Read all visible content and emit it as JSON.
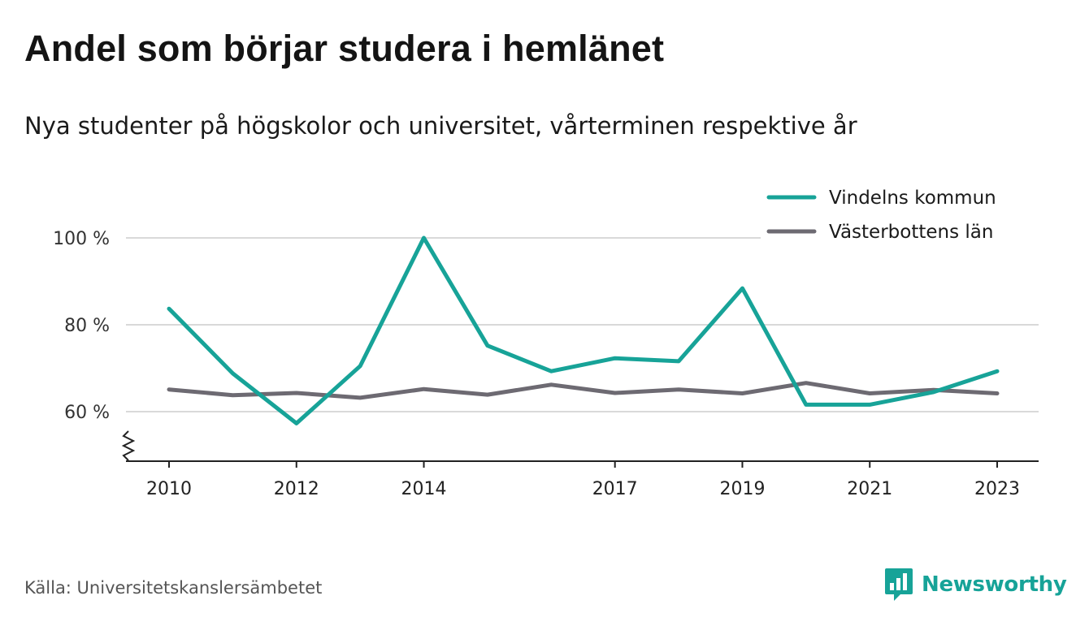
{
  "title": "Andel som börjar studera i hemlänet",
  "subtitle": "Nya studenter på högskolor och universitet, vårterminen respektive år",
  "source": "Källa: Universitetskanslersämbetet",
  "brand": {
    "name": "Newsworthy",
    "icon": "newsworthy-logo-icon",
    "color": "#17a398"
  },
  "chart_data": {
    "type": "line",
    "x": [
      2010,
      2011,
      2012,
      2013,
      2014,
      2015,
      2016,
      2017,
      2018,
      2019,
      2020,
      2021,
      2022,
      2023
    ],
    "x_tick_labels": [
      "2010",
      "2012",
      "2014",
      "2017",
      "2019",
      "2021",
      "2023"
    ],
    "y_tick_labels": [
      "100 %",
      "80 %",
      "60 %"
    ],
    "y_ticks": [
      100,
      80,
      60
    ],
    "ylim": [
      48.5,
      110
    ],
    "y_axis_break": true,
    "grid": true,
    "legend_position": "top-right",
    "series": [
      {
        "name": "Vindelns kommun",
        "color": "#17a398",
        "values": [
          83.7,
          68.8,
          57.3,
          70.5,
          100.0,
          75.2,
          69.3,
          72.3,
          71.6,
          88.4,
          61.6,
          61.6,
          64.5,
          69.3
        ]
      },
      {
        "name": "Västerbottens län",
        "color": "#6d6a72",
        "values": [
          65.1,
          63.8,
          64.3,
          63.2,
          65.2,
          63.9,
          66.2,
          64.3,
          65.1,
          64.2,
          66.6,
          64.2,
          65.0,
          64.2
        ]
      }
    ]
  }
}
